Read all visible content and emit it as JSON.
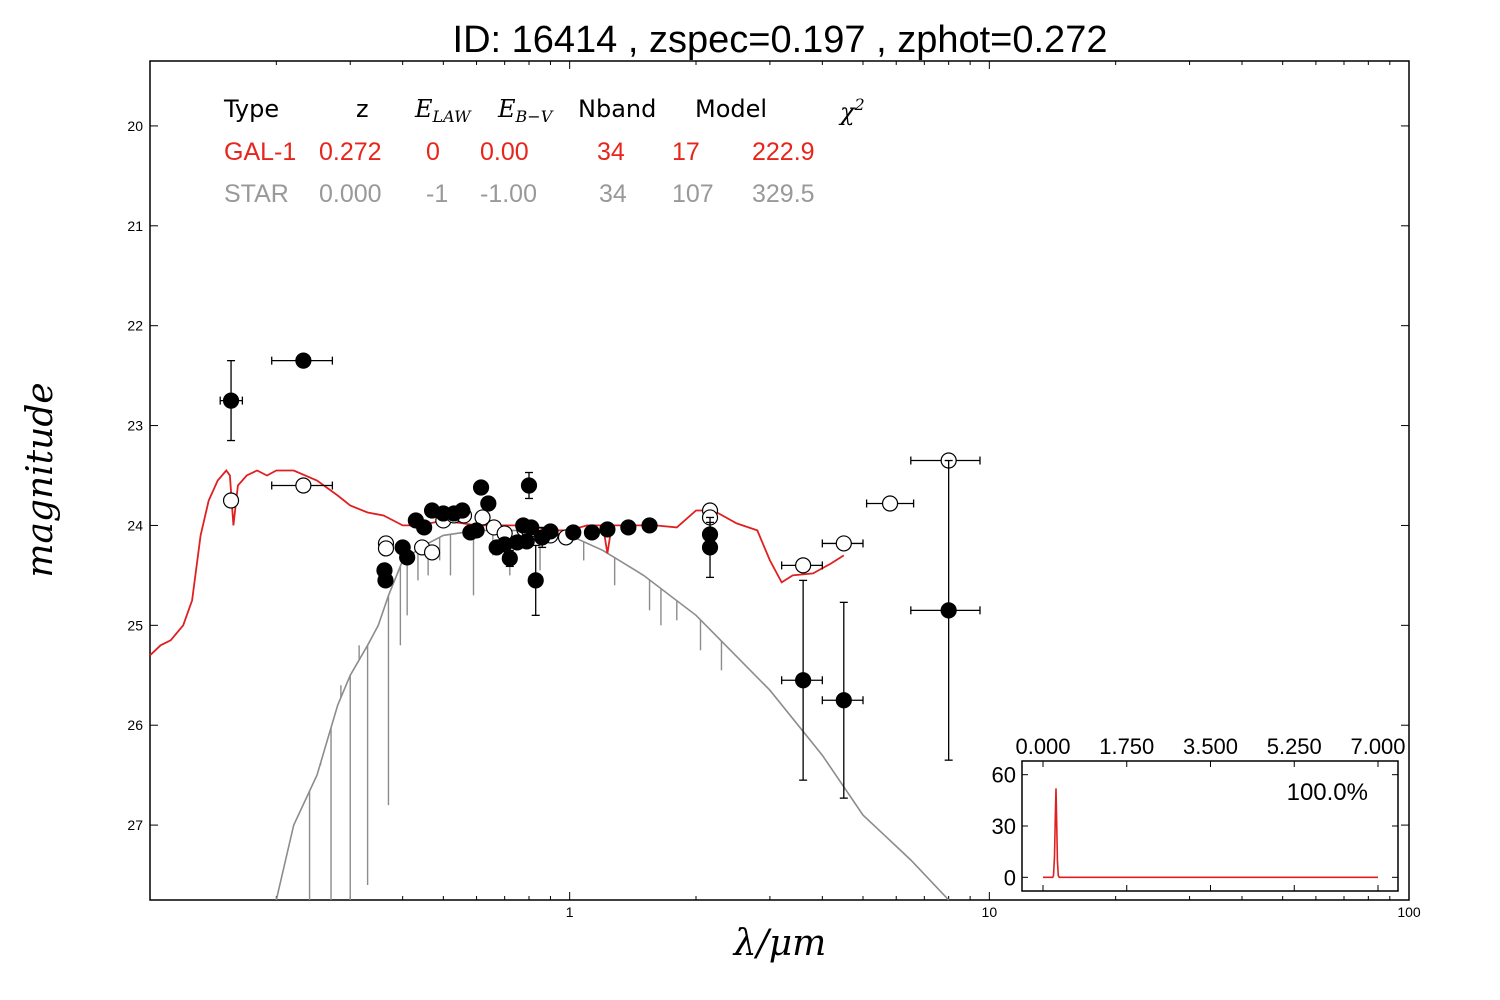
{
  "title": "ID:  16414 , zspec=0.197 , zphot=0.272",
  "chart_data": {
    "type": "scatter",
    "title": "ID:  16414 , zspec=0.197 , zphot=0.272",
    "xlabel": "λ/μm",
    "ylabel": "magnitude",
    "xscale": "log",
    "xlim": [
      0.1,
      100
    ],
    "ylim": [
      27.75,
      19.35
    ],
    "y_inverted": true,
    "x_tick_labels": [
      "1",
      "10",
      "100"
    ],
    "y_tick_labels": [
      "20",
      "21",
      "22",
      "23",
      "24",
      "25",
      "26",
      "27"
    ],
    "legend_table": {
      "headers": [
        "Type",
        "z",
        "E_LAW",
        "E_B-V",
        "Nband",
        "Model",
        "χ2"
      ],
      "rows": [
        {
          "values": [
            "GAL-1",
            "0.272",
            "0",
            "0.00",
            "34",
            "17",
            "222.9"
          ],
          "color": "#e8251c"
        },
        {
          "values": [
            "STAR",
            "0.000",
            "-1",
            "-1.00",
            "34",
            "107",
            "329.5"
          ],
          "color": "#999999"
        }
      ]
    },
    "colors": {
      "galaxy_model": "#e02020",
      "star_model": "#8c8c8c",
      "observed": "#000000",
      "model_mag": "#ffffff"
    },
    "observed_points": [
      {
        "x": 0.156,
        "y": 22.75,
        "yerr": 0.4,
        "xerr": [
          0.147,
          0.166
        ]
      },
      {
        "x": 0.232,
        "y": 22.35,
        "yerr": 0.06,
        "xerr": [
          0.195,
          0.272
        ]
      },
      {
        "x": 0.362,
        "y": 24.45,
        "yerr": 0.06
      },
      {
        "x": 0.364,
        "y": 24.55,
        "yerr": 0.06
      },
      {
        "x": 0.4,
        "y": 24.22,
        "yerr": 0.05
      },
      {
        "x": 0.41,
        "y": 24.32,
        "yerr": 0.05
      },
      {
        "x": 0.43,
        "y": 23.95,
        "yerr": 0.04
      },
      {
        "x": 0.45,
        "y": 24.02,
        "yerr": 0.04
      },
      {
        "x": 0.47,
        "y": 23.85,
        "yerr": 0.03
      },
      {
        "x": 0.5,
        "y": 23.88,
        "yerr": 0.03
      },
      {
        "x": 0.53,
        "y": 23.88,
        "yerr": 0.03
      },
      {
        "x": 0.555,
        "y": 23.85,
        "yerr": 0.03
      },
      {
        "x": 0.58,
        "y": 24.07,
        "yerr": 0.05
      },
      {
        "x": 0.6,
        "y": 24.05,
        "yerr": 0.05
      },
      {
        "x": 0.615,
        "y": 23.62,
        "yerr": 0.04
      },
      {
        "x": 0.64,
        "y": 23.78,
        "yerr": 0.04
      },
      {
        "x": 0.67,
        "y": 24.22,
        "yerr": 0.06
      },
      {
        "x": 0.7,
        "y": 24.19,
        "yerr": 0.06
      },
      {
        "x": 0.72,
        "y": 24.33,
        "yerr": 0.08
      },
      {
        "x": 0.75,
        "y": 24.17,
        "yerr": 0.06
      },
      {
        "x": 0.775,
        "y": 24.0,
        "yerr": 0.05
      },
      {
        "x": 0.79,
        "y": 24.16,
        "yerr": 0.06
      },
      {
        "x": 0.81,
        "y": 24.02,
        "yerr": 0.05
      },
      {
        "x": 0.8,
        "y": 23.6,
        "yerr": 0.13
      },
      {
        "x": 0.83,
        "y": 24.55,
        "yerr": 0.35
      },
      {
        "x": 0.86,
        "y": 24.12,
        "yerr": 0.1
      },
      {
        "x": 0.9,
        "y": 24.06,
        "yerr": 0.05
      },
      {
        "x": 1.02,
        "y": 24.07,
        "yerr": 0.04
      },
      {
        "x": 1.13,
        "y": 24.07,
        "yerr": 0.03
      },
      {
        "x": 1.23,
        "y": 24.04,
        "yerr": 0.03
      },
      {
        "x": 1.38,
        "y": 24.02,
        "yerr": 0.03
      },
      {
        "x": 1.55,
        "y": 24.0,
        "yerr": 0.03
      },
      {
        "x": 2.16,
        "y": 24.09,
        "yerr": 0.12
      },
      {
        "x": 2.16,
        "y": 24.22,
        "yerr": 0.3
      },
      {
        "x": 3.6,
        "y": 25.55,
        "yerr": 1.0,
        "xerr": [
          3.2,
          4.0
        ]
      },
      {
        "x": 4.5,
        "y": 25.75,
        "yerr": 0.98,
        "xerr": [
          4.0,
          5.0
        ]
      },
      {
        "x": 8.0,
        "y": 24.85,
        "yerr": 1.5,
        "xerr": [
          6.5,
          9.5
        ]
      }
    ],
    "model_points": [
      {
        "x": 0.156,
        "y": 23.75
      },
      {
        "x": 0.232,
        "y": 23.6,
        "xerr": [
          0.195,
          0.272
        ]
      },
      {
        "x": 0.365,
        "y": 24.18
      },
      {
        "x": 0.365,
        "y": 24.23
      },
      {
        "x": 0.445,
        "y": 24.22
      },
      {
        "x": 0.47,
        "y": 24.27
      },
      {
        "x": 0.5,
        "y": 23.95
      },
      {
        "x": 0.53,
        "y": 23.9
      },
      {
        "x": 0.56,
        "y": 23.9
      },
      {
        "x": 0.62,
        "y": 23.92
      },
      {
        "x": 0.66,
        "y": 24.02
      },
      {
        "x": 0.7,
        "y": 24.08
      },
      {
        "x": 0.78,
        "y": 24.04
      },
      {
        "x": 0.8,
        "y": 24.05
      },
      {
        "x": 0.9,
        "y": 24.1
      },
      {
        "x": 0.98,
        "y": 24.12
      },
      {
        "x": 2.16,
        "y": 23.85
      },
      {
        "x": 2.16,
        "y": 23.92
      },
      {
        "x": 3.6,
        "y": 24.4,
        "xerr": [
          3.2,
          4.0
        ]
      },
      {
        "x": 4.5,
        "y": 24.18,
        "xerr": [
          4.0,
          5.0
        ]
      },
      {
        "x": 5.8,
        "y": 23.78,
        "xerr": [
          5.1,
          6.6
        ]
      },
      {
        "x": 8.0,
        "y": 23.35,
        "xerr": [
          6.5,
          9.5
        ]
      }
    ],
    "galaxy_model_curve": {
      "x": [
        0.1,
        0.106,
        0.112,
        0.12,
        0.126,
        0.132,
        0.138,
        0.145,
        0.152,
        0.155,
        0.158,
        0.162,
        0.17,
        0.18,
        0.19,
        0.2,
        0.22,
        0.25,
        0.28,
        0.3,
        0.33,
        0.36,
        0.38,
        0.4,
        0.44,
        0.5,
        0.6,
        0.7,
        0.8,
        0.9,
        1.0,
        1.1,
        1.2,
        1.23,
        1.26,
        1.4,
        1.6,
        1.8,
        2.0,
        2.2,
        2.5,
        2.8,
        3.0,
        3.2,
        3.4,
        3.8,
        4.2,
        4.5
      ],
      "y": [
        25.3,
        25.2,
        25.15,
        25.0,
        24.75,
        24.1,
        23.75,
        23.55,
        23.45,
        23.5,
        24.0,
        23.6,
        23.5,
        23.45,
        23.5,
        23.45,
        23.45,
        23.55,
        23.7,
        23.8,
        23.87,
        23.9,
        23.95,
        24.0,
        24.0,
        23.95,
        24.0,
        24.0,
        24.0,
        24.05,
        24.05,
        24.0,
        24.0,
        24.28,
        24.0,
        24.0,
        24.0,
        24.02,
        23.85,
        23.85,
        23.98,
        24.05,
        24.35,
        24.57,
        24.5,
        24.48,
        24.38,
        24.3
      ]
    },
    "star_model_curve": {
      "continuum": {
        "x": [
          0.2,
          0.22,
          0.25,
          0.28,
          0.3,
          0.33,
          0.35,
          0.37,
          0.4,
          0.45,
          0.5,
          0.6,
          0.8,
          1.0,
          1.2,
          1.5,
          2.0,
          3.0,
          4.0,
          5.0,
          6.5,
          8.0
        ],
        "y": [
          27.75,
          27.0,
          26.5,
          25.8,
          25.5,
          25.2,
          25.0,
          24.7,
          24.35,
          24.2,
          24.1,
          24.05,
          24.05,
          24.1,
          24.25,
          24.5,
          24.9,
          25.65,
          26.3,
          26.9,
          27.35,
          27.75
        ]
      },
      "absorption_lines": [
        {
          "x": 0.24,
          "y": 27.75
        },
        {
          "x": 0.255,
          "y": 26.4
        },
        {
          "x": 0.27,
          "y": 27.75
        },
        {
          "x": 0.285,
          "y": 25.6
        },
        {
          "x": 0.3,
          "y": 27.75
        },
        {
          "x": 0.315,
          "y": 25.2
        },
        {
          "x": 0.33,
          "y": 27.6
        },
        {
          "x": 0.35,
          "y": 25.0
        },
        {
          "x": 0.37,
          "y": 26.8
        },
        {
          "x": 0.395,
          "y": 25.2
        },
        {
          "x": 0.41,
          "y": 24.9
        },
        {
          "x": 0.435,
          "y": 24.55
        },
        {
          "x": 0.46,
          "y": 24.5
        },
        {
          "x": 0.49,
          "y": 24.35
        },
        {
          "x": 0.52,
          "y": 24.5
        },
        {
          "x": 0.59,
          "y": 24.7
        },
        {
          "x": 0.656,
          "y": 24.3
        },
        {
          "x": 0.72,
          "y": 24.5
        },
        {
          "x": 0.85,
          "y": 24.45
        },
        {
          "x": 1.08,
          "y": 24.35
        },
        {
          "x": 1.28,
          "y": 24.6
        },
        {
          "x": 1.55,
          "y": 24.85
        },
        {
          "x": 1.65,
          "y": 25.0
        },
        {
          "x": 1.8,
          "y": 24.95
        },
        {
          "x": 2.05,
          "y": 25.25
        },
        {
          "x": 2.3,
          "y": 25.45
        }
      ]
    },
    "inset": {
      "type": "line",
      "xlim": [
        0.0,
        7.0
      ],
      "x_tick_labels": [
        "0.000",
        "1.750",
        "3.500",
        "5.250",
        "7.000"
      ],
      "y_tick_labels": [
        "0",
        "30",
        "60"
      ],
      "ylim": [
        -8,
        68
      ],
      "annotation": "100.0%",
      "pdz": {
        "x": [
          0.0,
          0.2,
          0.22,
          0.24,
          0.26,
          0.272,
          0.285,
          0.3,
          0.32,
          0.34,
          7.0
        ],
        "y": [
          0,
          0,
          1,
          12,
          38,
          52,
          35,
          10,
          1,
          0,
          0
        ]
      }
    }
  }
}
